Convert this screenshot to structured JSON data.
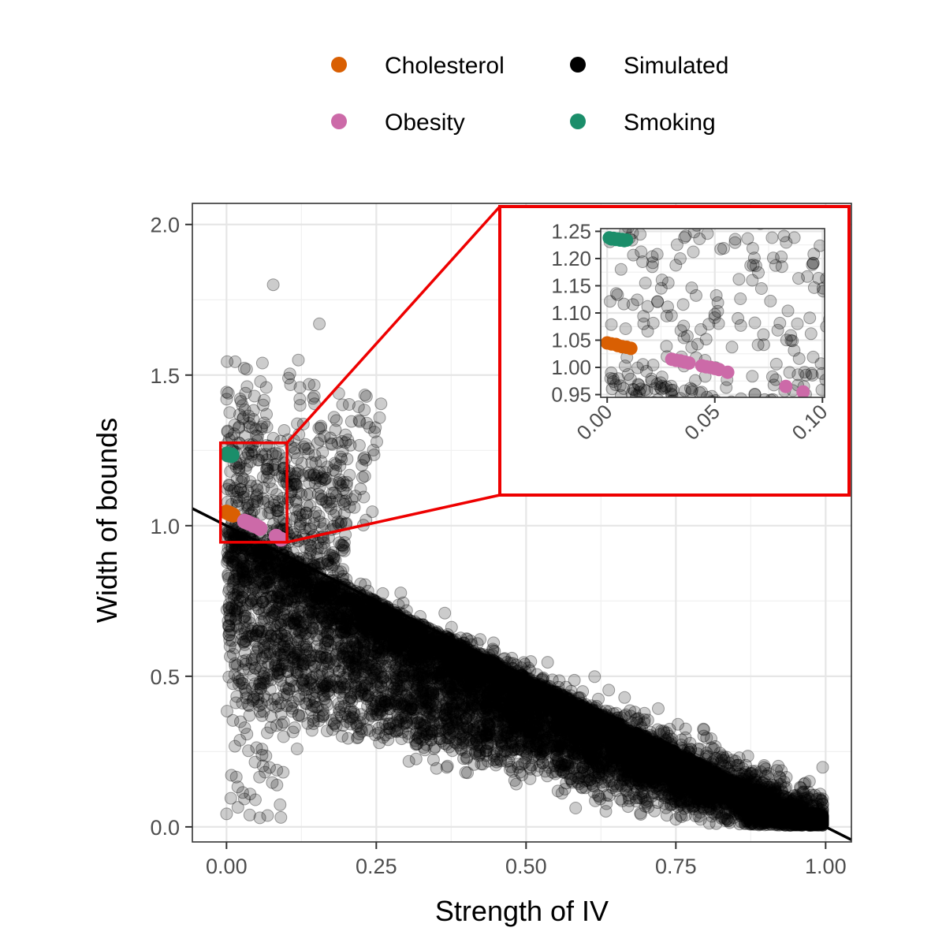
{
  "legend": {
    "items": [
      {
        "label": "Cholesterol",
        "color": "#D95F02"
      },
      {
        "label": "Simulated",
        "color": "#000000"
      },
      {
        "label": "Obesity",
        "color": "#E7298A"
      },
      {
        "label": "Smoking",
        "color": "#1B9E77"
      }
    ]
  },
  "chart_data": {
    "type": "scatter",
    "xlabel": "Strength of IV",
    "ylabel": "Width of bounds",
    "xlim": [
      -0.057,
      1.043
    ],
    "ylim": [
      -0.05,
      2.07
    ],
    "xticks": [
      "0.00",
      "0.25",
      "0.50",
      "0.75",
      "1.00"
    ],
    "yticks": [
      "0.0",
      "0.5",
      "1.0",
      "1.5",
      "2.0"
    ],
    "grid": true,
    "legend_position": "top",
    "reference_line": {
      "description": "y = 1 - x",
      "color": "#000000"
    },
    "simulated_cloud": {
      "description": "about 10000 simulated points lying mostly below the line y = 1 - x, densest around x 0.3-0.7",
      "color": "#000000",
      "alpha": 0.2
    },
    "series": [
      {
        "name": "Cholesterol",
        "color": "#D95F02",
        "x": [
          0.0,
          0.002,
          0.004,
          0.005,
          0.007,
          0.009,
          0.011
        ],
        "y": [
          1.045,
          1.043,
          1.042,
          1.04,
          1.038,
          1.037,
          1.035
        ]
      },
      {
        "name": "Obesity",
        "color": "#CC6AA8",
        "x": [
          0.03,
          0.032,
          0.034,
          0.036,
          0.038,
          0.044,
          0.046,
          0.048,
          0.05,
          0.052,
          0.056,
          0.083,
          0.091
        ],
        "y": [
          1.015,
          1.013,
          1.012,
          1.01,
          1.008,
          1.003,
          1.001,
          1.0,
          0.998,
          0.996,
          0.991,
          0.965,
          0.955
        ]
      },
      {
        "name": "Smoking",
        "color": "#1B8E6A",
        "x": [
          0.001,
          0.002,
          0.003,
          0.004,
          0.005,
          0.006,
          0.007,
          0.008,
          0.009
        ],
        "y": [
          1.238,
          1.236,
          1.237,
          1.235,
          1.236,
          1.234,
          1.235,
          1.233,
          1.234
        ]
      }
    ],
    "inset": {
      "xlim": [
        -0.003,
        0.101
      ],
      "ylim": [
        0.945,
        1.255
      ],
      "xticks": [
        "0.00",
        "0.05",
        "0.10"
      ],
      "yticks": [
        "0.95",
        "1.00",
        "1.05",
        "1.10",
        "1.15",
        "1.20",
        "1.25"
      ],
      "zoom_region": {
        "x": [
          -0.01,
          0.101
        ],
        "y": [
          0.945,
          1.275
        ]
      },
      "highlight_color": "#EE0000"
    }
  }
}
